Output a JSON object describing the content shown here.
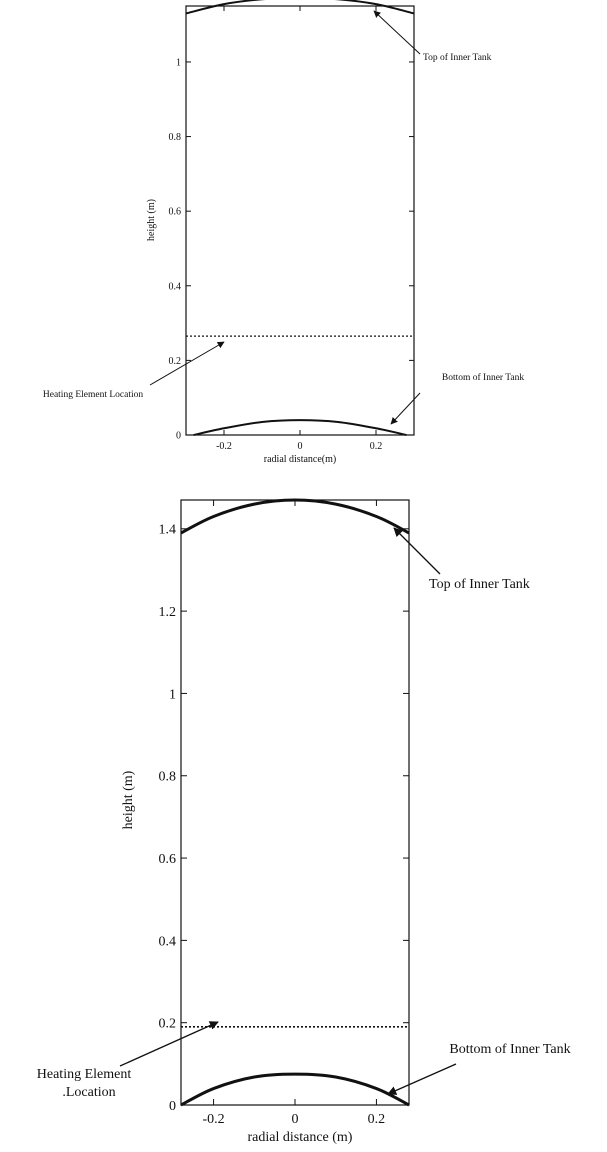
{
  "chart_data": [
    {
      "type": "line",
      "title": "",
      "xlabel": "radial distance(m)",
      "ylabel": "height (m)",
      "xlim": [
        -0.3,
        0.3
      ],
      "ylim": [
        0,
        1.15
      ],
      "xticks": [
        -0.2,
        0,
        0.2
      ],
      "xtick_labels": [
        "-0.2",
        "0",
        "0.2"
      ],
      "yticks": [
        0,
        0.2,
        0.4,
        0.6,
        0.8,
        1
      ],
      "ytick_labels": [
        "0",
        "0.2",
        "0.4",
        "0.6",
        "0.8",
        "1"
      ],
      "grid": false,
      "series": [
        {
          "x": [
            -0.3,
            -0.2,
            -0.1,
            0,
            0.1,
            0.2,
            0.3
          ],
          "y": [
            1.13,
            1.155,
            1.168,
            1.172,
            1.168,
            1.155,
            1.13
          ]
        },
        {
          "x": [
            -0.28,
            -0.2,
            -0.1,
            0,
            0.1,
            0.2,
            0.28
          ],
          "y": [
            0.0,
            0.018,
            0.035,
            0.04,
            0.035,
            0.018,
            0.0
          ]
        },
        {
          "x": [
            -0.3,
            0.3
          ],
          "y": [
            0.265,
            0.265
          ],
          "style": "dotted"
        }
      ],
      "annotations": [
        {
          "text": "Top of Inner Tank",
          "x": 0.2,
          "y": 1.16
        },
        {
          "text": "Heating Element Location",
          "x": -0.2,
          "y": 0.265
        },
        {
          "text": "Bottom of Inner Tank",
          "x": 0.28,
          "y": 0.01
        }
      ]
    },
    {
      "type": "line",
      "title": "",
      "xlabel": "radial distance (m)",
      "ylabel": "height (m)",
      "xlim": [
        -0.28,
        0.28
      ],
      "ylim": [
        0,
        1.47
      ],
      "xticks": [
        -0.2,
        0,
        0.2
      ],
      "xtick_labels": [
        "-0.2",
        "0",
        "0.2"
      ],
      "yticks": [
        0,
        0.2,
        0.4,
        0.6,
        0.8,
        1,
        1.2,
        1.4
      ],
      "ytick_labels": [
        "0",
        "0.2",
        "0.4",
        "0.6",
        "0.8",
        "1",
        "1.2",
        "1.4"
      ],
      "grid": false,
      "series": [
        {
          "x": [
            -0.28,
            -0.2,
            -0.1,
            0,
            0.1,
            0.2,
            0.28
          ],
          "y": [
            1.39,
            1.43,
            1.46,
            1.47,
            1.46,
            1.43,
            1.39
          ]
        },
        {
          "x": [
            -0.28,
            -0.2,
            -0.1,
            0,
            0.1,
            0.2,
            0.28
          ],
          "y": [
            0.0,
            0.04,
            0.068,
            0.075,
            0.068,
            0.04,
            0.0
          ]
        },
        {
          "x": [
            -0.28,
            0.28
          ],
          "y": [
            0.19,
            0.19
          ],
          "style": "dotted"
        }
      ],
      "annotations": [
        {
          "text": "Top of Inner Tank",
          "x": 0.24,
          "y": 1.41
        },
        {
          "text": "Heating Element Location",
          "x": -0.2,
          "y": 0.19
        },
        {
          "text": "Bottom of Inner Tank",
          "x": 0.27,
          "y": 0.01
        }
      ]
    }
  ]
}
